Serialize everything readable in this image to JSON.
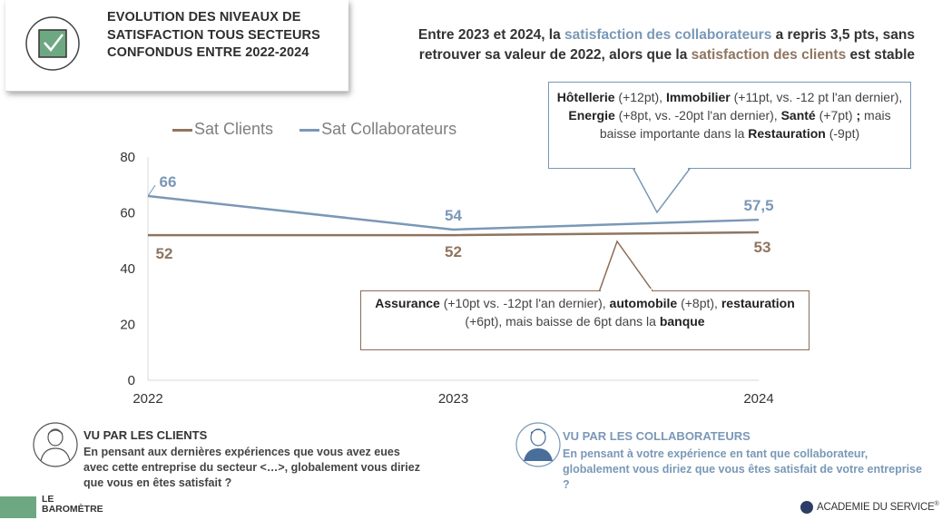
{
  "title": "EVOLUTION DES NIVEAUX DE SATISFACTION TOUS SECTEURS CONFONDUS ENTRE 2022-2024",
  "headline": {
    "part1": "Entre 2023 et 2024, la ",
    "highlight1": "satisfaction des collaborateurs",
    "part2": " a repris 3,5 pts, sans retrouver sa valeur de 2022, alors que la ",
    "highlight2": "satisfaction des clients",
    "part3": " est stable"
  },
  "callout_collab": {
    "b1": "Hôtellerie",
    "t1": " (+12pt), ",
    "b2": "Immobilier",
    "t2": " (+11pt, vs. -12 pt l'an dernier), ",
    "b3": "Energie",
    "t3": " (+8pt, vs. -20pt l'an dernier), ",
    "b4": "Santé",
    "t4": " (+7pt) ",
    "b5": ";",
    "t5": " mais baisse importante dans la ",
    "b6": "Restauration",
    "t6": " (-9pt)"
  },
  "callout_clients": {
    "b1": "Assurance",
    "t1": " (+10pt vs. -12pt l'an dernier), ",
    "b2": "automobile",
    "t2": " (+8pt), ",
    "b3": "restauration",
    "t3": " (+6pt), mais baisse de 6pt dans la ",
    "b4": "banque"
  },
  "chart_data": {
    "type": "line",
    "x": [
      "2022",
      "2023",
      "2024"
    ],
    "series": [
      {
        "name": "Sat Clients",
        "values": [
          52,
          52,
          53
        ],
        "labels": [
          "52",
          "52",
          "53"
        ],
        "color": "#8f7560"
      },
      {
        "name": "Sat Collaborateurs",
        "values": [
          66,
          54,
          57.5
        ],
        "labels": [
          "66",
          "54",
          "57,5"
        ],
        "color": "#7a98b7"
      }
    ],
    "ylim": [
      0,
      80
    ],
    "yticks": [
      "0",
      "20",
      "40",
      "60",
      "80"
    ],
    "grid": false,
    "legend": "top-left"
  },
  "footer": {
    "clients_title": "VU PAR LES CLIENTS",
    "clients_text": "En pensant aux dernières expériences que vous avez eues avec cette entreprise du secteur <…>, globalement vous diriez que vous en êtes satisfait ?",
    "collab_title": "VU PAR LES COLLABORATEURS",
    "collab_text": "En pensant à votre expérience en tant que collaborateur, globalement vous diriez que vous êtes satisfait de votre entreprise ?",
    "logo_left_line1": "LE",
    "logo_left_line2": "BAROMÈTRE",
    "logo_right": "ACADEMIE DU SERVICE"
  }
}
